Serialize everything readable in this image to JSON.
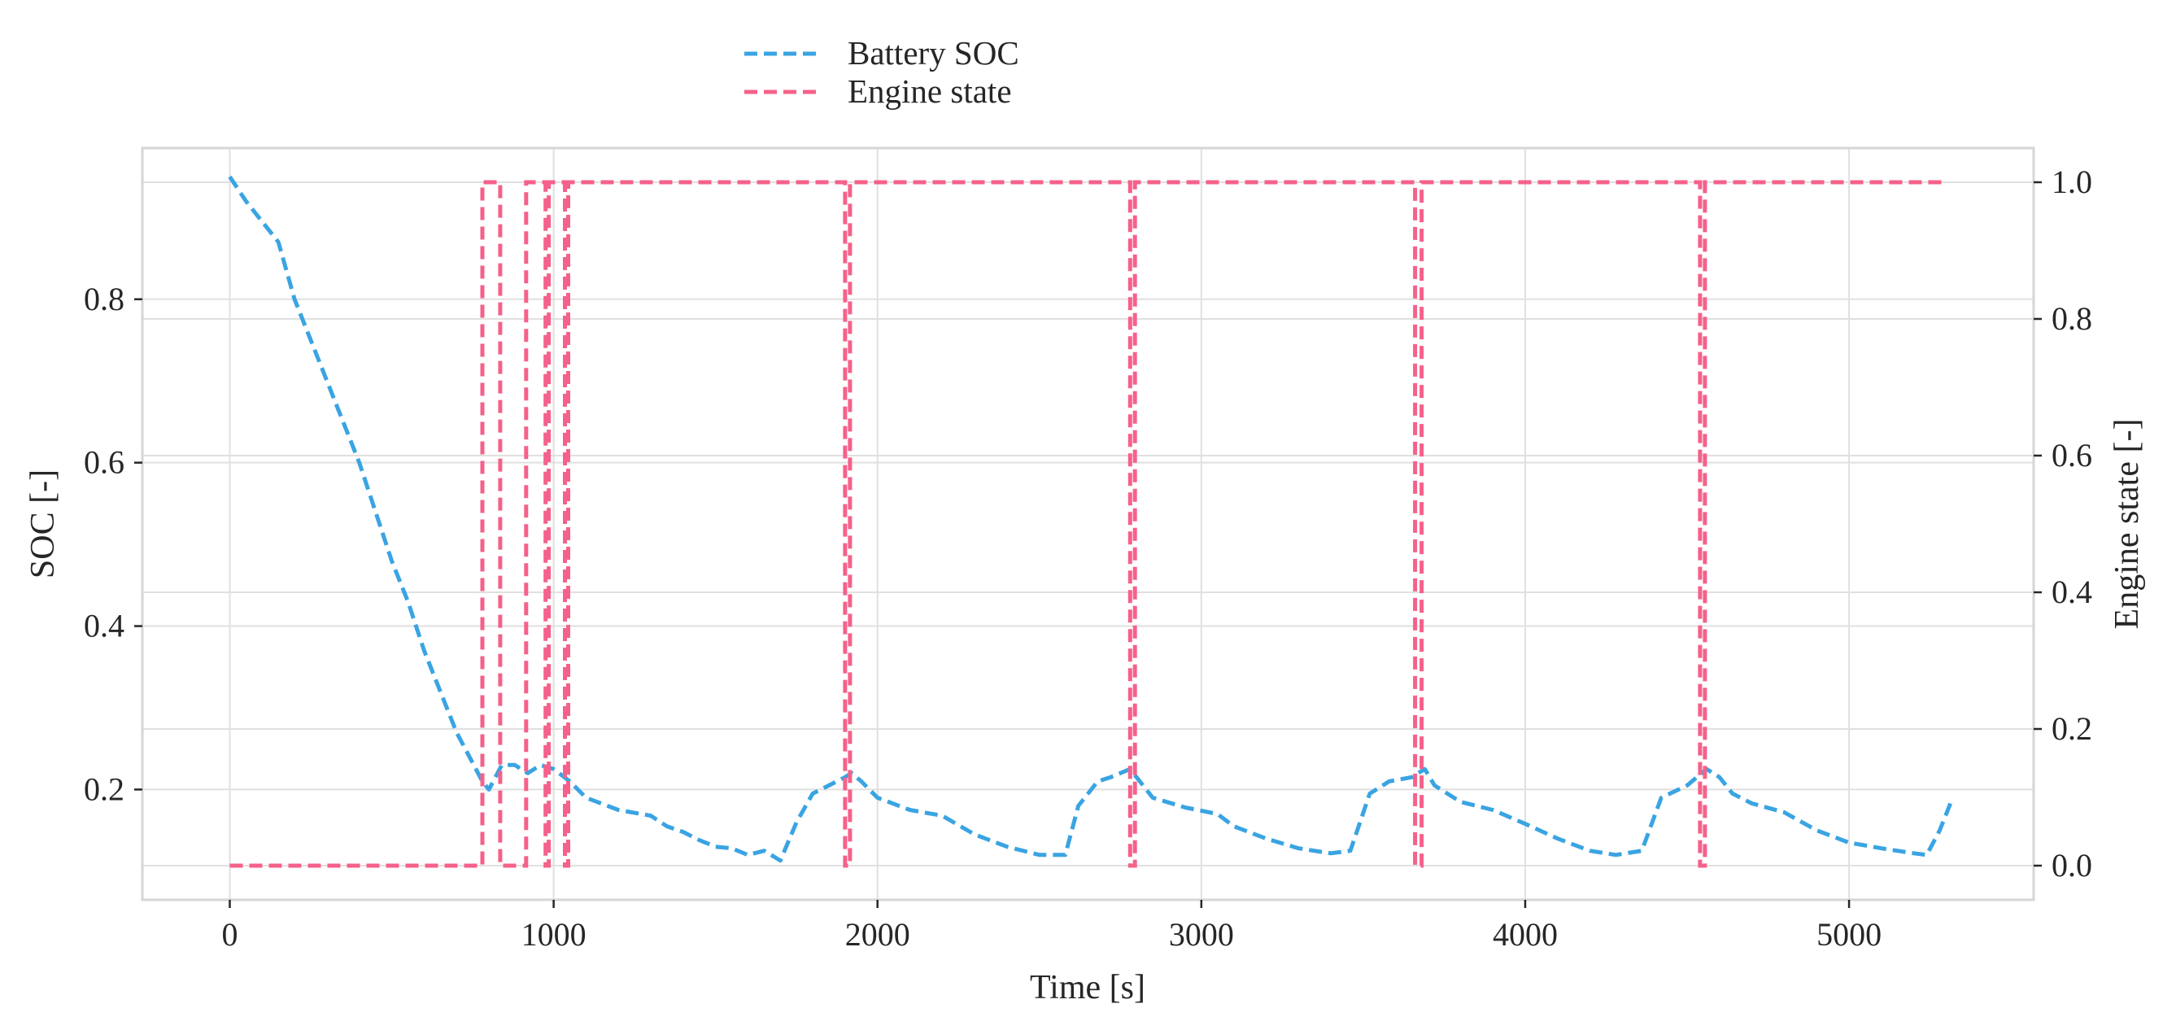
{
  "chart_data": {
    "type": "line",
    "xlabel": "Time [s]",
    "ylabel_left": "SOC [-]",
    "ylabel_right": "Engine state [-]",
    "xlim": [
      -270,
      5570
    ],
    "ylim_left": [
      0.065,
      0.985
    ],
    "ylim_right": [
      -0.05,
      1.05
    ],
    "x_ticks": [
      0,
      1000,
      2000,
      3000,
      4000,
      5000
    ],
    "y_ticks_left": [
      0.2,
      0.4,
      0.6,
      0.8
    ],
    "y_ticks_right": [
      0.0,
      0.2,
      0.4,
      0.6,
      0.8,
      1.0
    ],
    "grid": true,
    "legend": {
      "placement": "top-left, above plot",
      "entries": [
        "Battery SOC",
        "Engine state"
      ]
    },
    "colors": {
      "soc": "#3aa4e2",
      "engine": "#f5618a"
    },
    "series": [
      {
        "name": "Battery SOC",
        "axis": "left",
        "style": "dashed",
        "x": [
          0,
          50,
          150,
          200,
          300,
          400,
          500,
          550,
          600,
          650,
          700,
          740,
          780,
          800,
          840,
          880,
          920,
          960,
          1000,
          1050,
          1100,
          1200,
          1300,
          1350,
          1400,
          1450,
          1500,
          1550,
          1600,
          1650,
          1700,
          1750,
          1800,
          1850,
          1900,
          1920,
          1950,
          2000,
          2100,
          2200,
          2300,
          2400,
          2500,
          2580,
          2620,
          2680,
          2720,
          2780,
          2810,
          2850,
          2950,
          3050,
          3100,
          3200,
          3300,
          3400,
          3460,
          3520,
          3580,
          3650,
          3690,
          3720,
          3800,
          3900,
          4000,
          4100,
          4200,
          4280,
          4360,
          4420,
          4500,
          4560,
          4600,
          4640,
          4700,
          4800,
          4900,
          5000,
          5100,
          5200,
          5240,
          5280,
          5320
        ],
        "y": [
          0.95,
          0.92,
          0.87,
          0.8,
          0.7,
          0.6,
          0.48,
          0.43,
          0.37,
          0.32,
          0.27,
          0.24,
          0.21,
          0.2,
          0.23,
          0.23,
          0.22,
          0.23,
          0.225,
          0.21,
          0.19,
          0.175,
          0.168,
          0.155,
          0.148,
          0.138,
          0.13,
          0.128,
          0.12,
          0.125,
          0.113,
          0.16,
          0.195,
          0.205,
          0.215,
          0.22,
          0.21,
          0.19,
          0.175,
          0.168,
          0.145,
          0.13,
          0.12,
          0.12,
          0.18,
          0.21,
          0.215,
          0.225,
          0.21,
          0.19,
          0.178,
          0.17,
          0.155,
          0.14,
          0.128,
          0.122,
          0.125,
          0.195,
          0.21,
          0.215,
          0.225,
          0.205,
          0.185,
          0.175,
          0.158,
          0.14,
          0.125,
          0.12,
          0.125,
          0.19,
          0.205,
          0.225,
          0.215,
          0.195,
          0.183,
          0.172,
          0.15,
          0.135,
          0.128,
          0.122,
          0.12,
          0.15,
          0.19
        ]
      },
      {
        "name": "Engine state",
        "axis": "right",
        "style": "dashed-step",
        "x": [
          0,
          780,
          780,
          835,
          835,
          915,
          915,
          975,
          975,
          985,
          985,
          1035,
          1035,
          1045,
          1045,
          1900,
          1900,
          1915,
          1915,
          2780,
          2780,
          2795,
          2795,
          3660,
          3660,
          3680,
          3680,
          4540,
          4540,
          4555,
          4555,
          5300
        ],
        "y": [
          0,
          0,
          1,
          1,
          0,
          0,
          1,
          1,
          0,
          0,
          1,
          1,
          0,
          0,
          1,
          1,
          0,
          0,
          1,
          1,
          0,
          0,
          1,
          1,
          0,
          0,
          1,
          1,
          0,
          0,
          1,
          1
        ]
      }
    ]
  }
}
